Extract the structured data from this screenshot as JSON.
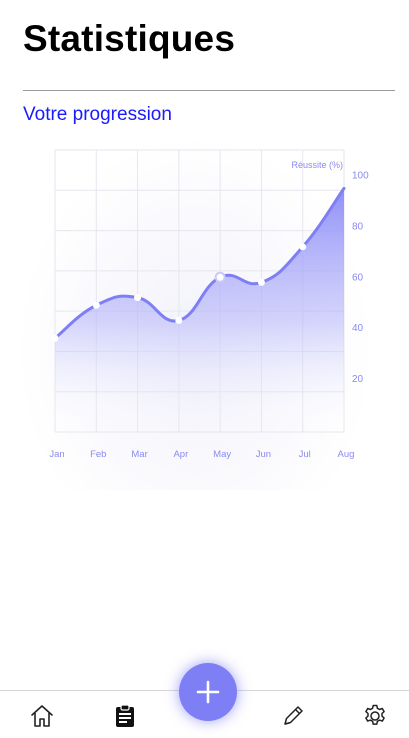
{
  "header": {
    "title": "Statistiques"
  },
  "section": {
    "heading": "Votre progression"
  },
  "colors": {
    "accent": "#7f7ff5",
    "heading_blue": "#1a1aff",
    "axis_label": "#8a8af0"
  },
  "chart_data": {
    "type": "area",
    "title": "",
    "ylabel": "Réussite (%)",
    "xlabel": "",
    "categories": [
      "Jan",
      "Feb",
      "Mar",
      "Apr",
      "May",
      "Jun",
      "Jul",
      "Aug"
    ],
    "x_ticks": [
      "Jan",
      "Feb",
      "Mar",
      "Apr",
      "May",
      "Jun",
      "Jul",
      "Aug"
    ],
    "y_ticks": [
      "100",
      "80",
      "60",
      "40",
      "20"
    ],
    "ylim": [
      5,
      105
    ],
    "grid": true,
    "y_axis_position": "right",
    "series": [
      {
        "values": [
          36,
          49,
          52,
          43,
          60,
          58,
          72,
          95
        ]
      }
    ]
  },
  "nav": {
    "items": [
      {
        "name": "home",
        "icon": "home-icon"
      },
      {
        "name": "stats",
        "icon": "clipboard-icon"
      },
      {
        "name": "add",
        "icon": "plus-icon"
      },
      {
        "name": "edit",
        "icon": "pencil-icon"
      },
      {
        "name": "settings",
        "icon": "gear-icon"
      }
    ]
  }
}
